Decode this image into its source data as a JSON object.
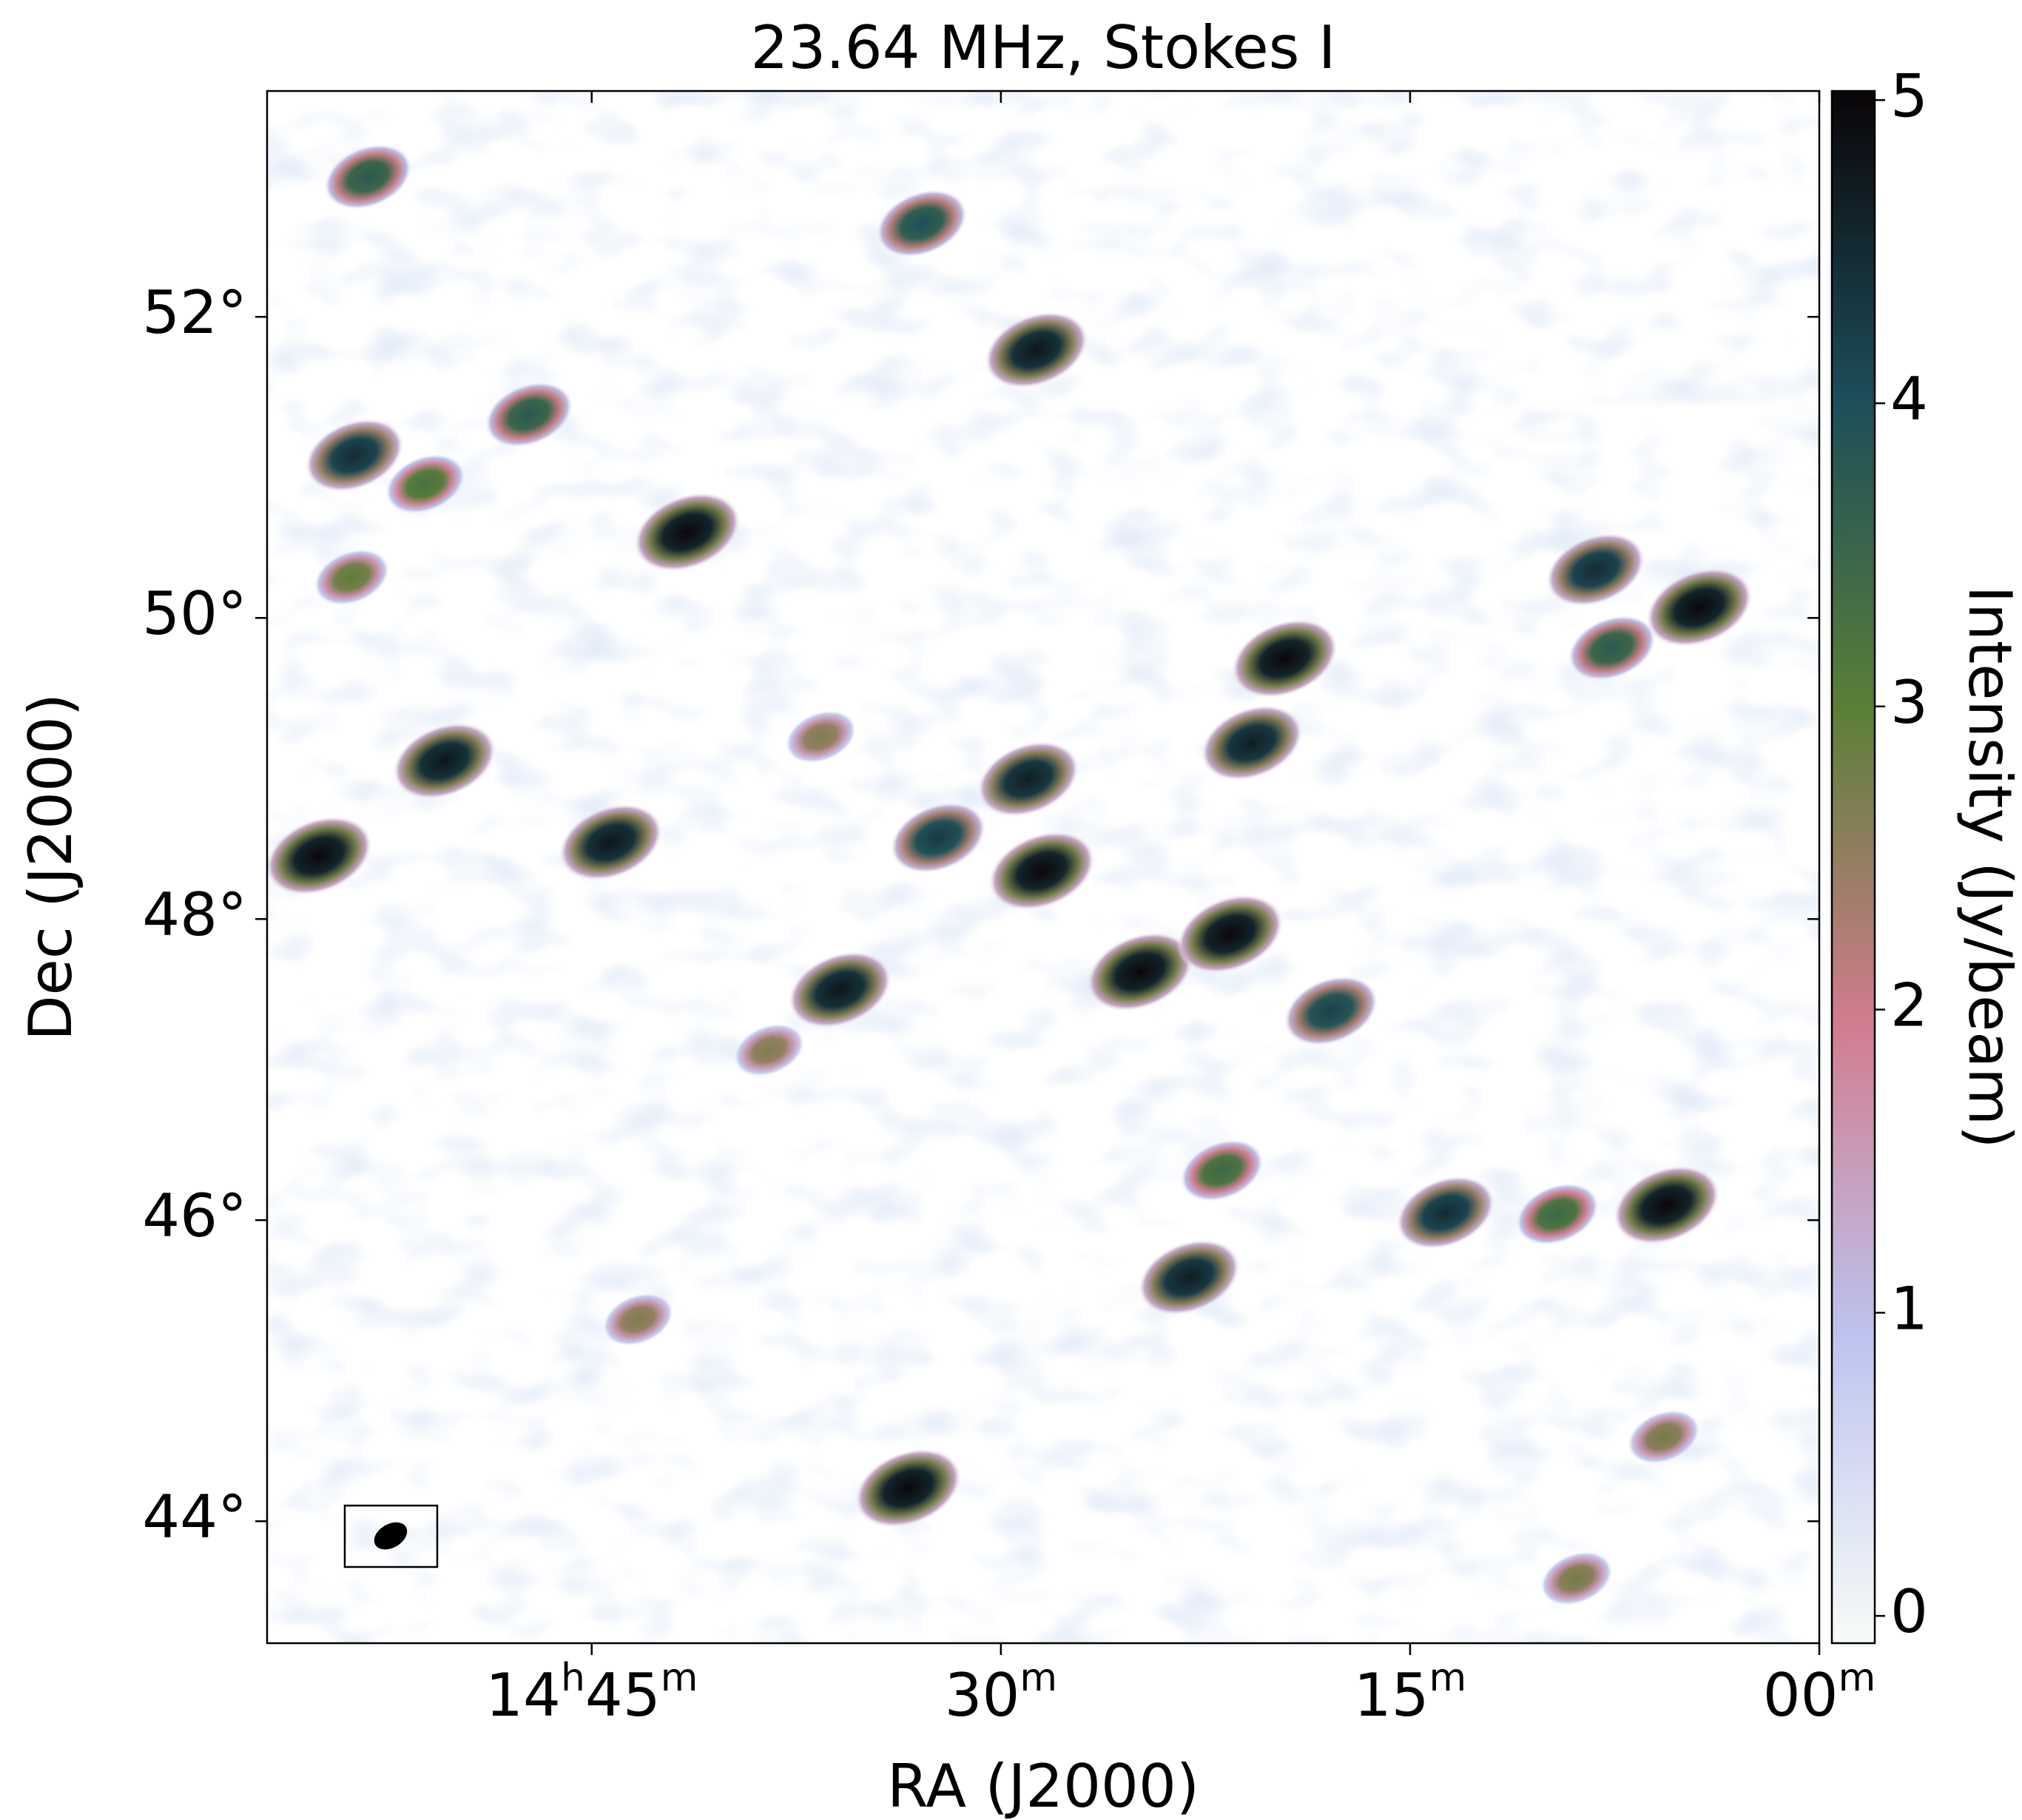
{
  "chart_data": {
    "type": "image",
    "title": "23.64 MHz, Stokes I",
    "xlabel": "RA (J2000)",
    "ylabel": "Dec (J2000)",
    "colorbar_label": "Intensity (Jy/beam)",
    "xlim": [
      56.9,
      0
    ],
    "xticks": [
      {
        "value": 45,
        "label": "14h45m"
      },
      {
        "value": 30,
        "label": "30m"
      },
      {
        "value": 15,
        "label": "15m"
      },
      {
        "value": 0,
        "label": "00m"
      }
    ],
    "ylim": [
      43.19,
      53.5
    ],
    "yticks": [
      {
        "value": 52,
        "label": "52°"
      },
      {
        "value": 50,
        "label": "50°"
      },
      {
        "value": 48,
        "label": "48°"
      },
      {
        "value": 46,
        "label": "46°"
      },
      {
        "value": 44,
        "label": "44°"
      }
    ],
    "clim": [
      -0.09,
      5.03
    ],
    "cticks": [
      0,
      1,
      2,
      3,
      4,
      5
    ],
    "colormap": [
      "#f7fbf8",
      "#bcc3ee",
      "#d27c8e",
      "#5b7f38",
      "#1d4e5a",
      "#0a0508"
    ],
    "sources": {
      "x": [
        55.0,
        28.5,
        41.5,
        33.4,
        5.6,
        4.4,
        19.6,
        24.9,
        21.6,
        28.7,
        44.3,
        35.9,
        50.4,
        29.0,
        20.8,
        23.1,
        8.2,
        13.7,
        53.7,
        32.3,
        17.9,
        32.9,
        53.2,
        47.3,
        7.6,
        9.6,
        21.9,
        51.1,
        53.8,
        5.7,
        8.9,
        43.3,
        36.6,
        38.5
      ],
      "y": [
        48.42,
        48.32,
        50.57,
        44.22,
        46.1,
        50.07,
        49.73,
        47.65,
        47.9,
        51.78,
        48.51,
        47.53,
        49.05,
        48.93,
        49.17,
        45.62,
        50.32,
        46.05,
        51.08,
        48.54,
        47.39,
        52.62,
        52.93,
        51.35,
        49.8,
        46.04,
        46.33,
        50.89,
        50.27,
        44.56,
        43.62,
        45.34,
        49.21,
        47.13
      ],
      "values": [
        5,
        5,
        5,
        5,
        5,
        5,
        5,
        5,
        5,
        4.8,
        4.8,
        4.8,
        4.8,
        4.7,
        4.7,
        4.7,
        4.5,
        4.5,
        4.5,
        4.3,
        4.2,
        4,
        3.8,
        3.8,
        3.8,
        3.5,
        3.5,
        3.3,
        3,
        2.8,
        2.8,
        2.7,
        2.7,
        2.7
      ]
    }
  }
}
